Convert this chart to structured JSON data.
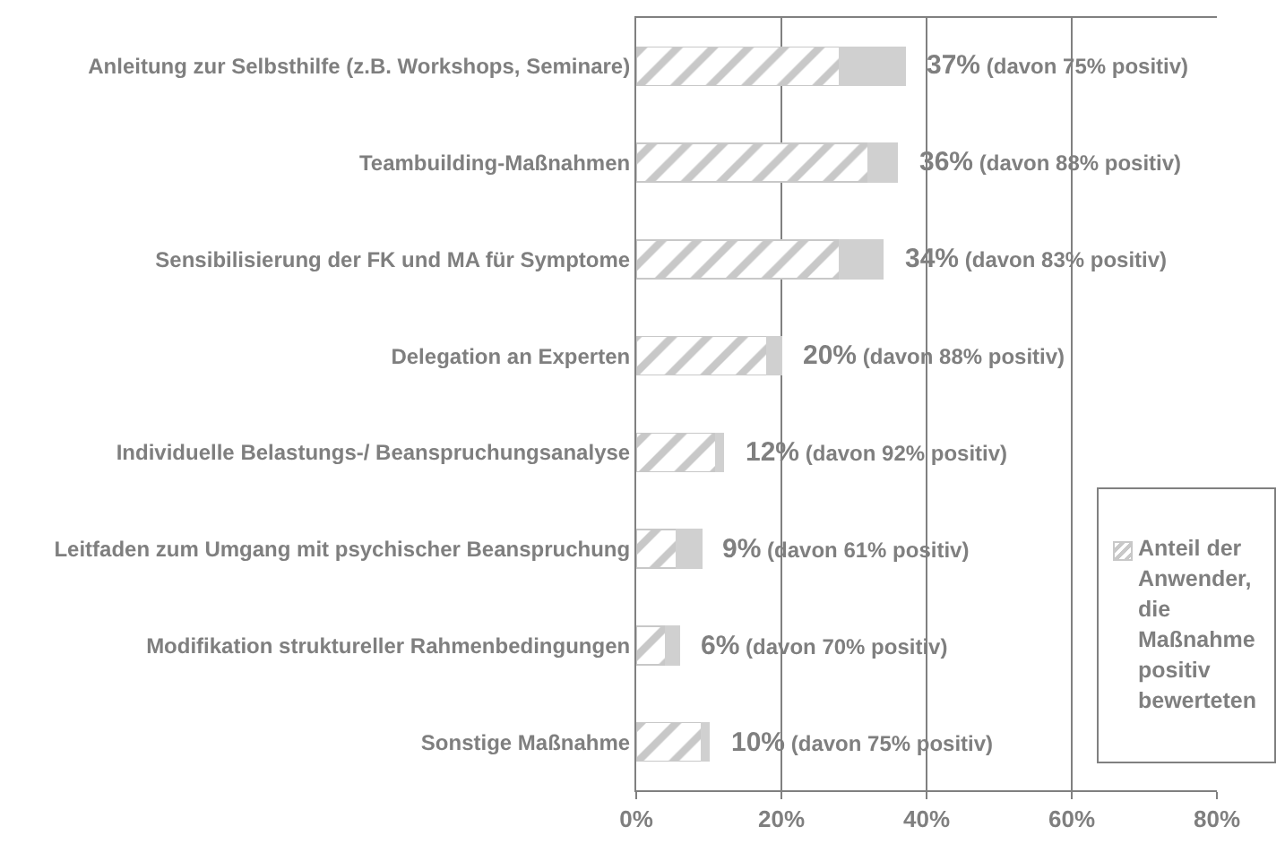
{
  "chart_data": {
    "type": "bar",
    "orientation": "horizontal",
    "stacked": true,
    "categories": [
      "Anleitung zur Selbsthilfe (z.B. Workshops, Seminare)",
      "Teambuilding-Maßnahmen",
      "Sensibilisierung der FK und MA für Symptome",
      "Delegation an Experten",
      "Individuelle Belastungs-/ Beanspruchungsanalyse",
      "Leitfaden zum Umgang mit psychischer Beanspruchung",
      "Modifikation struktureller Rahmenbedingungen",
      "Sonstige Maßnahme"
    ],
    "series": [
      {
        "name": "Anteil der Anwender, die Maßnahme positiv bewerteten",
        "color": "#c8c8c8",
        "values": [
          28,
          32,
          28,
          18,
          11,
          5.5,
          4,
          9
        ]
      },
      {
        "color": "#d0d0d0",
        "values": [
          9,
          4,
          6,
          2,
          1,
          3.5,
          2,
          1
        ]
      }
    ],
    "xlim": [
      0,
      80
    ],
    "xticks": [
      {
        "value": 0,
        "label": "0%"
      },
      {
        "value": 20,
        "label": "20%"
      },
      {
        "value": 40,
        "label": "40%"
      },
      {
        "value": 60,
        "label": "60%"
      },
      {
        "value": 80,
        "label": "80%"
      }
    ],
    "grid": "x",
    "legend": "bottom right",
    "annotations": [
      {
        "text": "37% (davon 75% positiv)",
        "x": 37,
        "y": "Anleitung zur Selbsthilfe (z.B. Workshops, Seminare)"
      },
      {
        "text": "36% (davon 88% positiv)",
        "x": 36,
        "y": "Teambuilding-Maßnahmen"
      },
      {
        "text": "34% (davon 83% positiv)",
        "x": 34,
        "y": "Sensibilisierung der FK und MA für Symptome"
      },
      {
        "text": "20% (davon 88% positiv)",
        "x": 20,
        "y": "Delegation an Experten"
      },
      {
        "text": "12% (davon 92% positiv)",
        "x": 12,
        "y": "Individuelle Belastungs-/ Beanspruchungsanalyse"
      },
      {
        "text": "9% (davon 61% positiv)",
        "x": 9,
        "y": "Leitfaden zum Umgang mit psychischer Beanspruchung"
      },
      {
        "text": "6% (davon 70% positiv)",
        "x": 6,
        "y": "Modifikation struktureller Rahmenbedingungen"
      },
      {
        "text": "10% (davon 75% positiv)",
        "x": 10,
        "y": "Sonstige Maßnahme"
      }
    ]
  }
}
